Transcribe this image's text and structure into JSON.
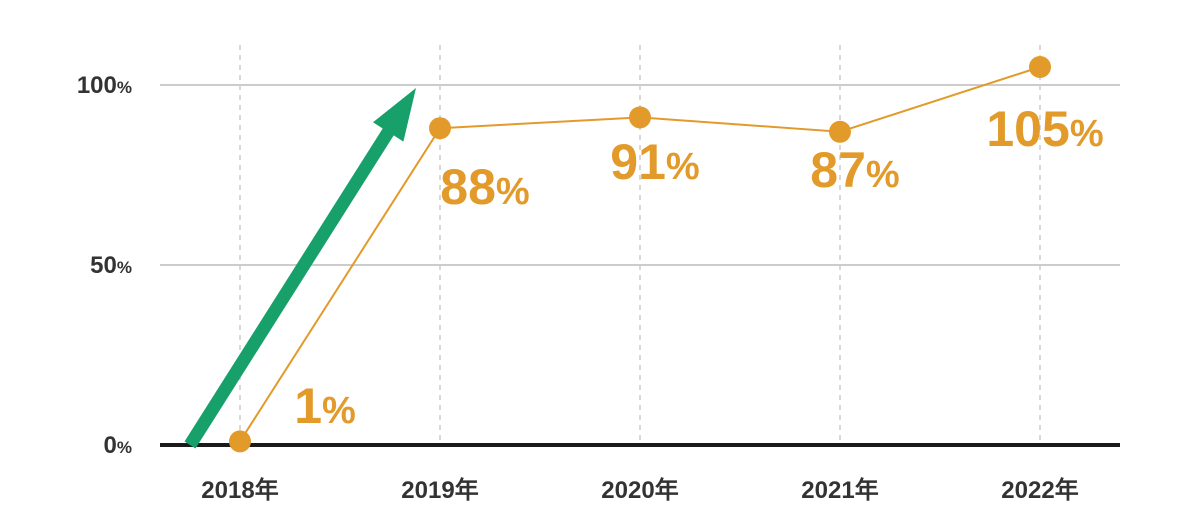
{
  "chart_data": {
    "type": "line",
    "categories": [
      "2018年",
      "2019年",
      "2020年",
      "2021年",
      "2022年"
    ],
    "series": [
      {
        "values": [
          1,
          88,
          91,
          87,
          105
        ]
      }
    ],
    "data_labels": [
      {
        "num": "1",
        "unit": "%"
      },
      {
        "num": "88",
        "unit": "%"
      },
      {
        "num": "91",
        "unit": "%"
      },
      {
        "num": "87",
        "unit": "%"
      },
      {
        "num": "105",
        "unit": "%"
      }
    ],
    "y_ticks": [
      {
        "value": 0,
        "num": "0",
        "unit": "%"
      },
      {
        "value": 50,
        "num": "50",
        "unit": "%"
      },
      {
        "value": 100,
        "num": "100",
        "unit": "%"
      }
    ],
    "ylim": [
      0,
      100
    ],
    "grid": true,
    "colors": {
      "line": "#E29A2A",
      "arrow": "#17A06A",
      "grid": "#CCCCCC",
      "axis": "#1A1A1A",
      "tick_text": "#333333"
    }
  }
}
